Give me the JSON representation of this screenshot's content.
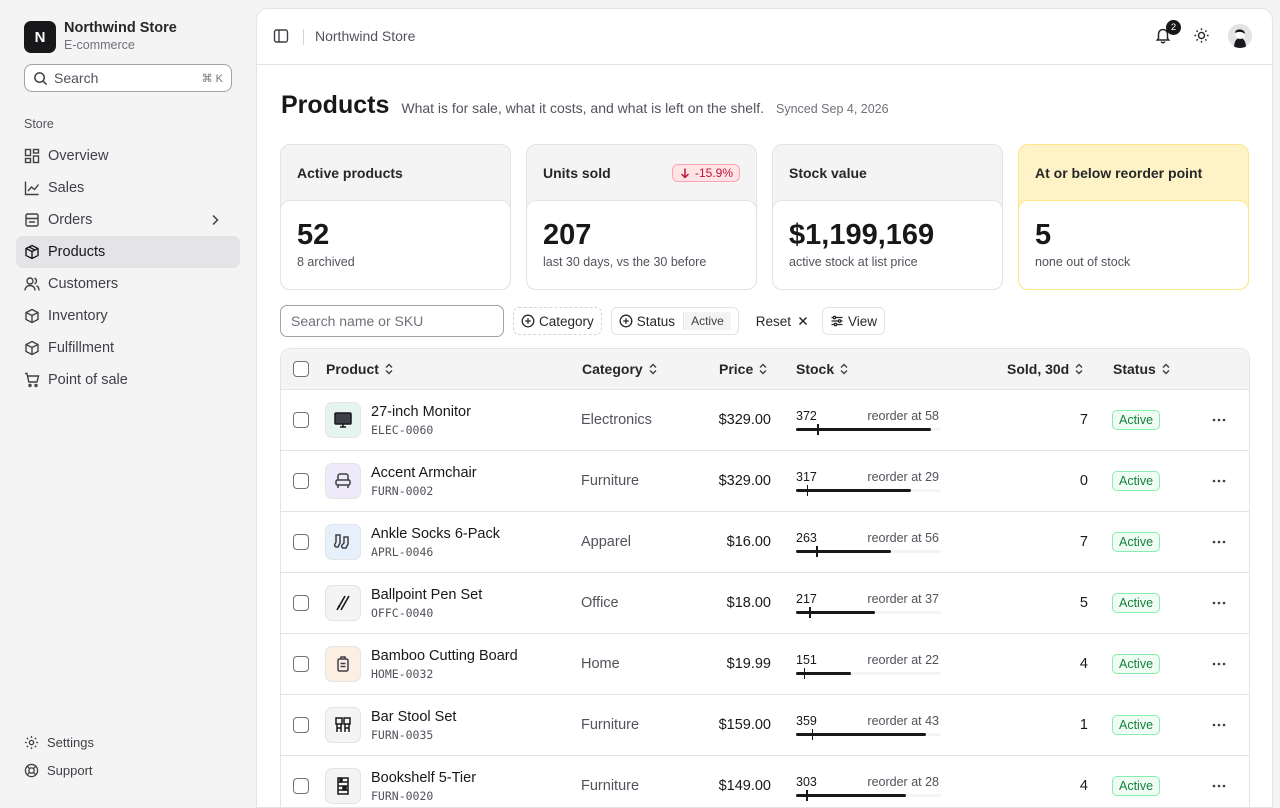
{
  "brand": {
    "initial": "N",
    "name": "Northwind Store",
    "subtitle": "E-commerce"
  },
  "sidebar": {
    "search_label": "Search",
    "search_kbd": "⌘ K",
    "section_label": "Store",
    "items": [
      {
        "label": "Overview",
        "icon": "grid-icon"
      },
      {
        "label": "Sales",
        "icon": "chart-icon"
      },
      {
        "label": "Orders",
        "icon": "orders-icon"
      },
      {
        "label": "Products",
        "icon": "box-icon"
      },
      {
        "label": "Customers",
        "icon": "users-icon"
      },
      {
        "label": "Inventory",
        "icon": "box-icon"
      },
      {
        "label": "Fulfillment",
        "icon": "box-icon"
      },
      {
        "label": "Point of sale",
        "icon": "cart-icon"
      }
    ],
    "footer": [
      {
        "label": "Settings",
        "icon": "gear-icon"
      },
      {
        "label": "Support",
        "icon": "lifebuoy-icon"
      }
    ]
  },
  "topbar": {
    "breadcrumb": "Northwind Store",
    "notification_count": "2"
  },
  "page": {
    "title": "Products",
    "description": "What is for sale, what it costs, and what is left on the shelf.",
    "synced": "Synced Sep 4, 2026"
  },
  "cards": [
    {
      "title": "Active products",
      "value": "52",
      "sub": "8 archived"
    },
    {
      "title": "Units sold",
      "value": "207",
      "sub": "last 30 days, vs the 30 before",
      "delta": "-15.9%"
    },
    {
      "title": "Stock value",
      "value": "$1,199,169",
      "sub": "active stock at list price"
    },
    {
      "title": "At or below reorder point",
      "value": "5",
      "sub": "none out of stock"
    }
  ],
  "toolbar": {
    "search_placeholder": "Search name or SKU",
    "category_label": "Category",
    "status_label": "Status",
    "status_value": "Active",
    "reset_label": "Reset",
    "view_label": "View"
  },
  "table": {
    "headers": {
      "product": "Product",
      "category": "Category",
      "price": "Price",
      "stock": "Stock",
      "sold": "Sold, 30d",
      "status": "Status"
    },
    "stock_max": 400,
    "rows": [
      {
        "name": "27-inch Monitor",
        "sku": "ELEC-0060",
        "category": "Electronics",
        "price": "$329.00",
        "stock": 372,
        "reorder_value": 58,
        "reorder": "reorder at 58",
        "sold": "7",
        "status": "Active",
        "thumb_bg": "#e6f4ef"
      },
      {
        "name": "Accent Armchair",
        "sku": "FURN-0002",
        "category": "Furniture",
        "price": "$329.00",
        "stock": 317,
        "reorder_value": 29,
        "reorder": "reorder at 29",
        "sold": "0",
        "status": "Active",
        "thumb_bg": "#eeeaf9"
      },
      {
        "name": "Ankle Socks 6-Pack",
        "sku": "APRL-0046",
        "category": "Apparel",
        "price": "$16.00",
        "stock": 263,
        "reorder_value": 56,
        "reorder": "reorder at 56",
        "sold": "7",
        "status": "Active",
        "thumb_bg": "#e6f0fb"
      },
      {
        "name": "Ballpoint Pen Set",
        "sku": "OFFC-0040",
        "category": "Office",
        "price": "$18.00",
        "stock": 217,
        "reorder_value": 37,
        "reorder": "reorder at 37",
        "sold": "5",
        "status": "Active",
        "thumb_bg": "#f4f4f5"
      },
      {
        "name": "Bamboo Cutting Board",
        "sku": "HOME-0032",
        "category": "Home",
        "price": "$19.99",
        "stock": 151,
        "reorder_value": 22,
        "reorder": "reorder at 22",
        "sold": "4",
        "status": "Active",
        "thumb_bg": "#fbefe4"
      },
      {
        "name": "Bar Stool Set",
        "sku": "FURN-0035",
        "category": "Furniture",
        "price": "$159.00",
        "stock": 359,
        "reorder_value": 43,
        "reorder": "reorder at 43",
        "sold": "1",
        "status": "Active",
        "thumb_bg": "#f4f4f5"
      },
      {
        "name": "Bookshelf 5-Tier",
        "sku": "FURN-0020",
        "category": "Furniture",
        "price": "$149.00",
        "stock": 303,
        "reorder_value": 28,
        "reorder": "reorder at 28",
        "sold": "4",
        "status": "Active",
        "thumb_bg": "#f4f4f5"
      }
    ]
  }
}
